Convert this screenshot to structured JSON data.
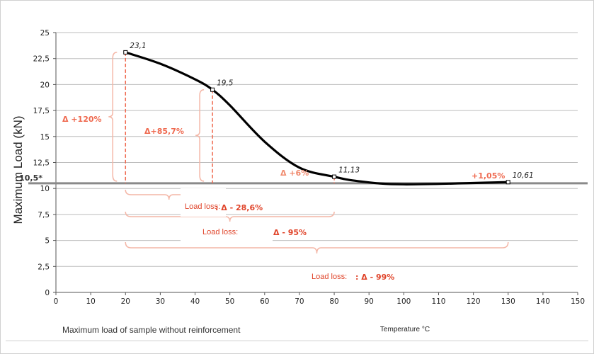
{
  "chart_data": {
    "type": "line",
    "ylabel": "Maximum Load (kN)",
    "xlabel": "Temperature °C",
    "footnote": "Maximum load of sample without reinforcement",
    "xlim": [
      0,
      150
    ],
    "x_ticks": [
      "0",
      "10",
      "20",
      "30",
      "40",
      "50",
      "60",
      "70",
      "80",
      "90",
      "100",
      "110",
      "120",
      "130",
      "140",
      "150"
    ],
    "y_ticks": [
      "0",
      "2,5",
      "5",
      "7,5",
      "10",
      "12,5",
      "15",
      "17,5",
      "20",
      "22,5",
      "25"
    ],
    "ylim": [
      0,
      25
    ],
    "grid": true,
    "reference_line": {
      "value": 10.5,
      "label": "10,5*"
    },
    "series": [
      {
        "x": [
          20,
          30,
          40,
          45,
          50,
          60,
          70,
          80,
          87,
          100,
          130
        ],
        "y": [
          23.1,
          22.0,
          20.5,
          19.5,
          18.0,
          14.5,
          12.0,
          11.13,
          10.7,
          10.4,
          10.61
        ],
        "color": "#000000"
      }
    ],
    "markers": [
      {
        "x": 20,
        "y": 23.1,
        "label": "23,1"
      },
      {
        "x": 45,
        "y": 19.5,
        "label": "19,5"
      },
      {
        "x": 80,
        "y": 11.13,
        "label": "11,13"
      },
      {
        "x": 130,
        "y": 10.61,
        "label": "10,61"
      }
    ],
    "annotations": {
      "increase_20": "Δ +120%",
      "increase_45": "Δ+85,7%",
      "increase_80": "Δ +6%",
      "increase_130": "+1,05%",
      "loss_1_label": "Load loss:",
      "loss_1_value": "Δ - 28,6%",
      "loss_2_label": "Load loss:",
      "loss_2_value": "Δ - 95%",
      "loss_3_label": "Load loss:",
      "loss_3_value": "Δ - 99%"
    },
    "colors": {
      "line": "#000000",
      "reference": "#8a8a8a",
      "annotation": "#ef6a50",
      "loss": "#e0442a",
      "brace": "#f4b6a6",
      "grid": "#bdbdbd"
    }
  }
}
